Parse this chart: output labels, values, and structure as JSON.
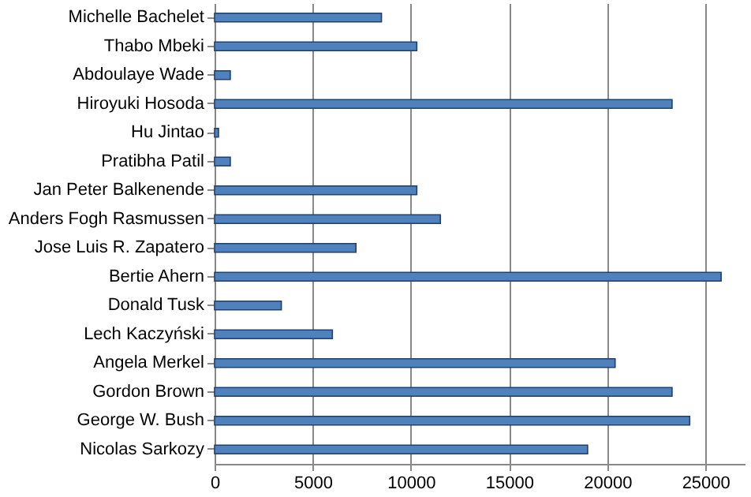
{
  "chart_data": {
    "type": "bar",
    "orientation": "horizontal",
    "categories": [
      "Michelle Bachelet",
      "Thabo Mbeki",
      "Abdoulaye Wade",
      "Hiroyuki Hosoda",
      "Hu Jintao",
      "Pratibha Patil",
      "Jan Peter Balkenende",
      "Anders Fogh Rasmussen",
      "Jose Luis R. Zapatero",
      "Bertie Ahern",
      "Donald Tusk",
      "Lech Kaczyński",
      "Angela Merkel",
      "Gordon Brown",
      "George W. Bush",
      "Nicolas Sarkozy"
    ],
    "values": [
      8500,
      10300,
      800,
      23300,
      200,
      800,
      10300,
      11500,
      7200,
      25800,
      3400,
      6000,
      20400,
      23300,
      24200,
      19000
    ],
    "color": "#4f81bd",
    "xlim": [
      0,
      27000
    ],
    "xticks": [
      0,
      5000,
      10000,
      15000,
      20000,
      25000
    ],
    "grid": "x"
  }
}
